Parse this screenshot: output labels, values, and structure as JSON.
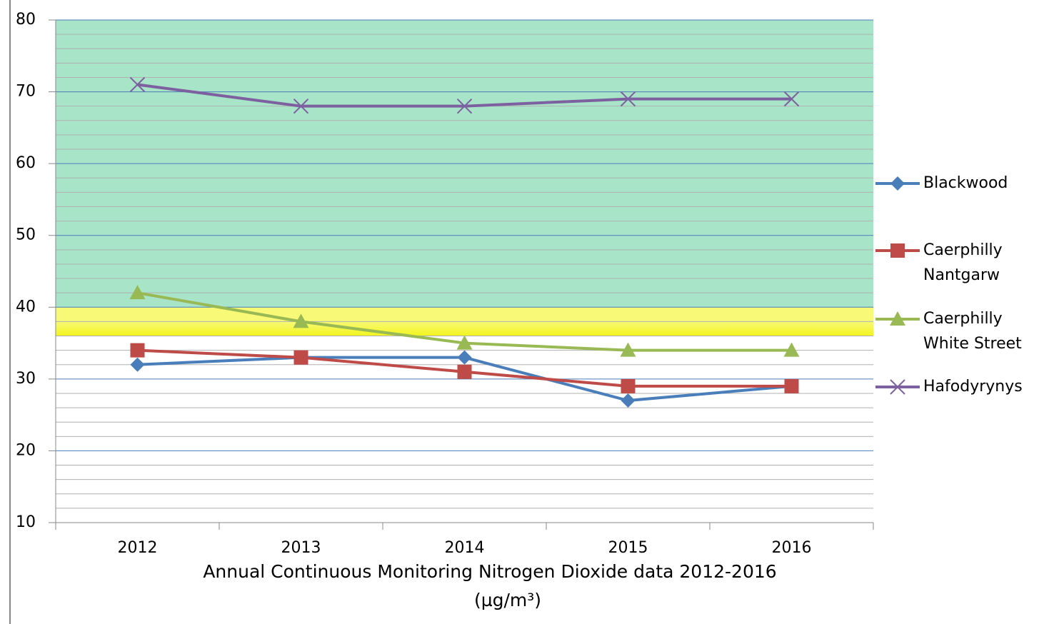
{
  "chart_data": {
    "type": "line",
    "title": "Annual Continuous Monitoring Nitrogen Dioxide data 2012-2016",
    "subtitle": "(µg/m³)",
    "categories": [
      "2012",
      "2013",
      "2014",
      "2015",
      "2016"
    ],
    "series": [
      {
        "name": "Blackwood",
        "color": "#4a7ebb",
        "marker": "diamond",
        "values": [
          32,
          33,
          33,
          27,
          29
        ]
      },
      {
        "name": "Caerphilly Nantgarw",
        "color": "#be4b48",
        "marker": "square",
        "values": [
          34,
          33,
          31,
          29,
          29
        ]
      },
      {
        "name": "Caerphilly White Street",
        "color": "#98b954",
        "marker": "triangle",
        "values": [
          42,
          38,
          35,
          34,
          34
        ]
      },
      {
        "name": "Hafodyrynys",
        "color": "#7d60a0",
        "marker": "x",
        "values": [
          71,
          68,
          68,
          69,
          69
        ]
      }
    ],
    "ylim": [
      10,
      80
    ],
    "yticks": [
      10,
      20,
      30,
      40,
      50,
      60,
      70,
      80
    ],
    "minor_yticks": [
      12,
      14,
      16,
      18,
      22,
      24,
      26,
      28,
      32,
      34,
      36,
      38,
      42,
      44,
      46,
      48,
      52,
      54,
      56,
      58,
      62,
      64,
      66,
      68,
      72,
      74,
      76,
      78
    ],
    "bands": [
      {
        "from": 40,
        "to": 80,
        "color": "#a8e4c8"
      },
      {
        "from": 36,
        "to": 40,
        "color": "#f2f51c"
      }
    ],
    "grid": true,
    "legend": "right"
  }
}
